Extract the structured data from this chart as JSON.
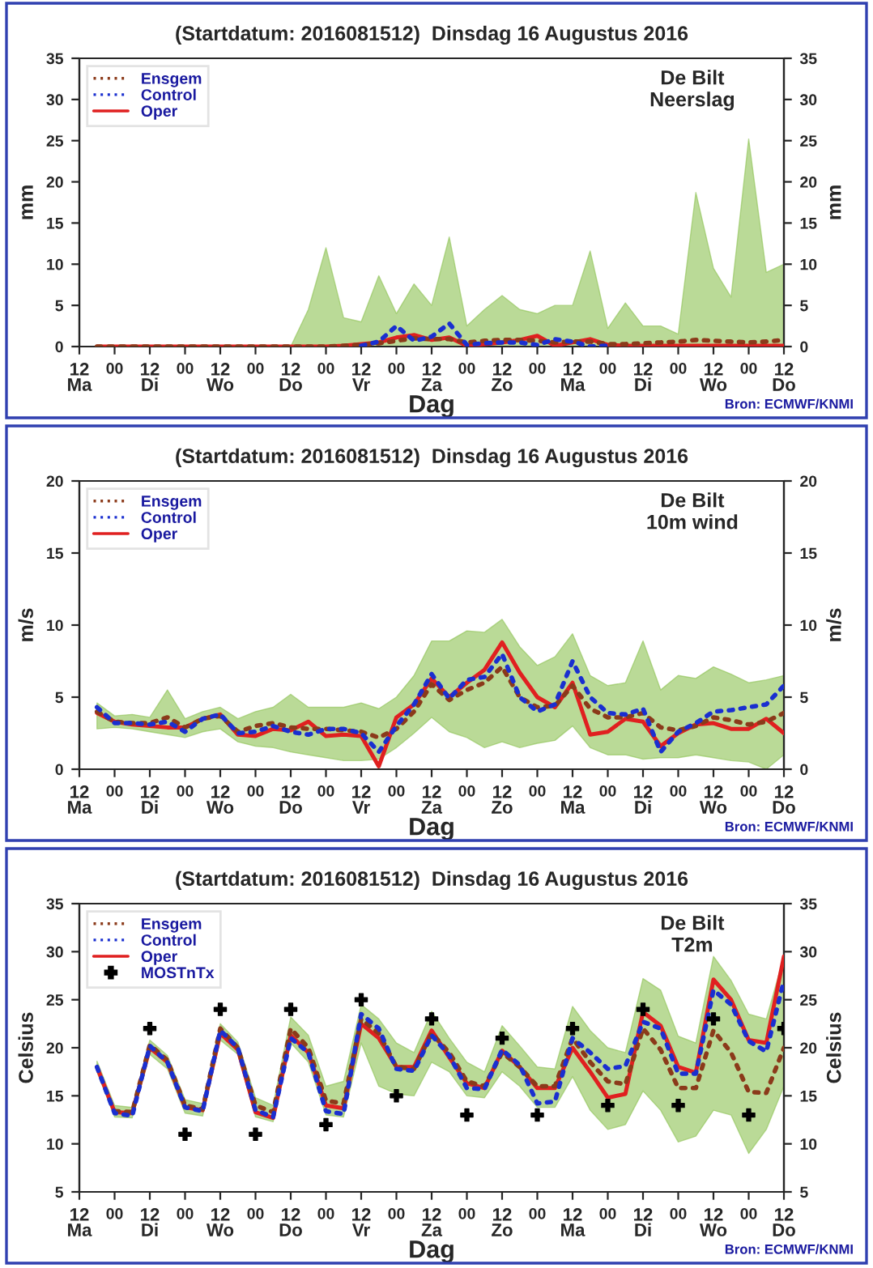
{
  "chart_data": [
    {
      "type": "line",
      "title": "(Startdatum: 2016081512)  Dinsdag 16 Augustus 2016",
      "xlabel": "Dag",
      "ylabel": "mm",
      "y2label": "mm",
      "annotations": [
        "De Bilt\nNeerslag",
        "Bron: ECMWF/KNMI"
      ],
      "x": [
        "2016-08-15T18:00",
        "2016-08-16T00:00",
        "2016-08-16T06:00",
        "2016-08-16T12:00",
        "2016-08-16T18:00",
        "2016-08-17T00:00",
        "2016-08-17T06:00",
        "2016-08-17T12:00",
        "2016-08-17T18:00",
        "2016-08-18T00:00",
        "2016-08-18T06:00",
        "2016-08-18T12:00",
        "2016-08-18T18:00",
        "2016-08-19T00:00",
        "2016-08-19T06:00",
        "2016-08-19T12:00",
        "2016-08-19T18:00",
        "2016-08-20T00:00",
        "2016-08-20T06:00",
        "2016-08-20T12:00",
        "2016-08-20T18:00",
        "2016-08-21T00:00",
        "2016-08-21T06:00",
        "2016-08-21T12:00",
        "2016-08-21T18:00",
        "2016-08-22T00:00",
        "2016-08-22T06:00",
        "2016-08-22T12:00",
        "2016-08-22T18:00",
        "2016-08-23T00:00",
        "2016-08-23T06:00",
        "2016-08-23T12:00",
        "2016-08-23T18:00",
        "2016-08-24T00:00",
        "2016-08-24T06:00",
        "2016-08-24T12:00",
        "2016-08-24T18:00",
        "2016-08-25T00:00",
        "2016-08-25T06:00",
        "2016-08-25T12:00"
      ],
      "series": [
        {
          "name": "Ensgem",
          "color": "#8b3a1a",
          "line_style": "dashed",
          "values": [
            0,
            0,
            0,
            0,
            0,
            0,
            0,
            0,
            0,
            0,
            0,
            0,
            0,
            0,
            0.1,
            0.2,
            0.4,
            0.7,
            1.0,
            0.9,
            0.9,
            0.5,
            0.7,
            0.8,
            0.8,
            0.7,
            0.5,
            0.6,
            0.6,
            0.3,
            0.3,
            0.4,
            0.5,
            0.6,
            0.8,
            0.7,
            0.6,
            0.5,
            0.6,
            0.8
          ],
          "lower": [
            0,
            0,
            0,
            0,
            0,
            0,
            0,
            0,
            0,
            0,
            0,
            0,
            0,
            0,
            0,
            0,
            0,
            0,
            0,
            0,
            0,
            0,
            0,
            0,
            0,
            0,
            0,
            0,
            0,
            0,
            0,
            0,
            0,
            0,
            0,
            0,
            0,
            0,
            0,
            0
          ],
          "upper": [
            0,
            0,
            0,
            0,
            0,
            0,
            0,
            0,
            0,
            0,
            0,
            0,
            4.5,
            12,
            3.5,
            3,
            8.6,
            4,
            7.6,
            5,
            13.3,
            2.5,
            4.5,
            6.2,
            4.5,
            4,
            5,
            5,
            11.6,
            2.2,
            5.3,
            2.5,
            2.5,
            1.5,
            18.7,
            9.5,
            6,
            25.2,
            9,
            10
          ]
        },
        {
          "name": "Control",
          "color": "#1a2fd0",
          "line_style": "dashed",
          "values": [
            null,
            null,
            null,
            null,
            null,
            null,
            null,
            null,
            null,
            null,
            null,
            null,
            null,
            null,
            null,
            0.1,
            0.6,
            2.5,
            0.7,
            1.2,
            2.8,
            0.2,
            0.4,
            0.5,
            0.5,
            0.2,
            0.9,
            0.6,
            0,
            0.1,
            null,
            null,
            null,
            null,
            null,
            null,
            null,
            null,
            null,
            null
          ]
        },
        {
          "name": "Oper",
          "color": "#e02020",
          "line_style": "solid",
          "values": [
            0,
            0,
            0,
            0,
            0,
            0,
            0,
            0,
            0,
            0,
            0,
            0,
            0,
            0,
            0.1,
            0.3,
            0.5,
            1.1,
            1.4,
            0.8,
            1.1,
            0.1,
            0.3,
            0.5,
            0.8,
            1.3,
            0.1,
            0.5,
            0.9,
            0.2,
            0.1,
            0.1,
            0.1,
            0.1,
            0.1,
            0.1,
            0.1,
            0.1,
            0.1,
            0.1
          ]
        }
      ],
      "xlim": [
        "2016-08-15T12:00",
        "2016-08-25T12:00"
      ],
      "ylim": [
        0,
        35
      ],
      "yticks": [
        0,
        5,
        10,
        15,
        20,
        25,
        30,
        35
      ],
      "y2lim": [
        0,
        35
      ],
      "y2ticks": [
        0,
        5,
        10,
        15,
        20,
        25,
        30,
        35
      ],
      "xticks": [
        {
          "value": "2016-08-15T12:00",
          "label": "12\nMa"
        },
        {
          "value": "2016-08-16T00:00",
          "label": "00"
        },
        {
          "value": "2016-08-16T12:00",
          "label": "12\nDi"
        },
        {
          "value": "2016-08-17T00:00",
          "label": "00"
        },
        {
          "value": "2016-08-17T12:00",
          "label": "12\nWo"
        },
        {
          "value": "2016-08-18T00:00",
          "label": "00"
        },
        {
          "value": "2016-08-18T12:00",
          "label": "12\nDo"
        },
        {
          "value": "2016-08-19T00:00",
          "label": "00"
        },
        {
          "value": "2016-08-19T12:00",
          "label": "12\nVr"
        },
        {
          "value": "2016-08-20T00:00",
          "label": "00"
        },
        {
          "value": "2016-08-20T12:00",
          "label": "12\nZa"
        },
        {
          "value": "2016-08-21T00:00",
          "label": "00"
        },
        {
          "value": "2016-08-21T12:00",
          "label": "12\nZo"
        },
        {
          "value": "2016-08-22T00:00",
          "label": "00"
        },
        {
          "value": "2016-08-22T12:00",
          "label": "12\nMa"
        },
        {
          "value": "2016-08-23T00:00",
          "label": "00"
        },
        {
          "value": "2016-08-23T12:00",
          "label": "12\nDi"
        },
        {
          "value": "2016-08-24T00:00",
          "label": "00"
        },
        {
          "value": "2016-08-24T12:00",
          "label": "12\nWo"
        },
        {
          "value": "2016-08-25T00:00",
          "label": "00"
        },
        {
          "value": "2016-08-25T12:00",
          "label": "12\nDo"
        }
      ],
      "legend": "top left",
      "grid": false
    },
    {
      "type": "line",
      "title": "(Startdatum: 2016081512)  Dinsdag 16 Augustus 2016",
      "xlabel": "Dag",
      "ylabel": "m/s",
      "y2label": "m/s",
      "annotations": [
        "De Bilt\n10m wind",
        "Bron: ECMWF/KNMI"
      ],
      "x": [
        "2016-08-15T18:00",
        "2016-08-16T00:00",
        "2016-08-16T06:00",
        "2016-08-16T12:00",
        "2016-08-16T18:00",
        "2016-08-17T00:00",
        "2016-08-17T06:00",
        "2016-08-17T12:00",
        "2016-08-17T18:00",
        "2016-08-18T00:00",
        "2016-08-18T06:00",
        "2016-08-18T12:00",
        "2016-08-18T18:00",
        "2016-08-19T00:00",
        "2016-08-19T06:00",
        "2016-08-19T12:00",
        "2016-08-19T18:00",
        "2016-08-20T00:00",
        "2016-08-20T06:00",
        "2016-08-20T12:00",
        "2016-08-20T18:00",
        "2016-08-21T00:00",
        "2016-08-21T06:00",
        "2016-08-21T12:00",
        "2016-08-21T18:00",
        "2016-08-22T00:00",
        "2016-08-22T06:00",
        "2016-08-22T12:00",
        "2016-08-22T18:00",
        "2016-08-23T00:00",
        "2016-08-23T06:00",
        "2016-08-23T12:00",
        "2016-08-23T18:00",
        "2016-08-24T00:00",
        "2016-08-24T06:00",
        "2016-08-24T12:00",
        "2016-08-24T18:00",
        "2016-08-25T00:00",
        "2016-08-25T06:00",
        "2016-08-25T12:00"
      ],
      "series": [
        {
          "name": "Ensgem",
          "color": "#8b3a1a",
          "line_style": "dashed",
          "values": [
            4.0,
            3.3,
            3.2,
            3.2,
            3.6,
            2.9,
            3.5,
            3.7,
            2.6,
            3.0,
            3.2,
            2.9,
            2.8,
            2.8,
            2.7,
            2.6,
            2.2,
            2.8,
            4.0,
            5.9,
            4.8,
            5.5,
            6.0,
            7.1,
            5.0,
            4.3,
            4.4,
            5.8,
            4.2,
            3.6,
            3.6,
            3.9,
            2.9,
            2.7,
            3.0,
            3.6,
            3.4,
            3.1,
            3.3,
            3.9
          ],
          "lower": [
            2.8,
            2.9,
            2.8,
            2.6,
            2.4,
            2.2,
            2.6,
            2.8,
            1.9,
            1.6,
            1.5,
            1.2,
            1.0,
            0.8,
            0.6,
            0.6,
            0.7,
            1.5,
            2.5,
            3.6,
            2.6,
            2.2,
            1.5,
            1.9,
            1.5,
            1.8,
            2.0,
            3.0,
            1.5,
            1.0,
            1.0,
            0.7,
            0.8,
            0.8,
            1.0,
            0.8,
            0.6,
            0.5,
            0,
            1.0
          ],
          "upper": [
            4.6,
            3.7,
            3.8,
            3.6,
            5.5,
            3.5,
            4.0,
            4.3,
            3.5,
            4.0,
            4.3,
            5.2,
            4.3,
            4.3,
            4.3,
            4.6,
            4.2,
            5.0,
            6.5,
            8.9,
            8.9,
            9.6,
            9.5,
            10.4,
            8.5,
            7.2,
            7.8,
            9.4,
            6.5,
            5.8,
            6.0,
            8.9,
            5.5,
            6.5,
            6.3,
            7.1,
            6.6,
            6.0,
            6.2,
            6.5
          ]
        },
        {
          "name": "Control",
          "color": "#1a2fd0",
          "line_style": "dashed",
          "values": [
            4.3,
            3.2,
            3.2,
            3.1,
            3.3,
            2.6,
            3.5,
            3.8,
            2.5,
            2.6,
            3.0,
            2.6,
            2.4,
            2.8,
            2.8,
            2.5,
            1.2,
            3.0,
            4.5,
            6.6,
            4.9,
            6.2,
            6.4,
            8.0,
            5.0,
            4.0,
            4.5,
            7.5,
            5.0,
            3.9,
            3.8,
            4.2,
            1.2,
            2.6,
            3.2,
            4.0,
            4.1,
            4.3,
            4.5,
            5.8
          ]
        },
        {
          "name": "Oper",
          "color": "#e02020",
          "line_style": "solid",
          "values": [
            3.9,
            3.3,
            3.1,
            3.0,
            2.9,
            2.9,
            3.5,
            3.8,
            2.4,
            2.3,
            2.8,
            2.7,
            3.3,
            2.3,
            2.4,
            2.3,
            0.2,
            3.6,
            4.5,
            6.3,
            5.0,
            6.0,
            6.9,
            8.8,
            6.7,
            5.0,
            4.3,
            6.0,
            2.4,
            2.6,
            3.5,
            3.3,
            1.6,
            2.5,
            3.1,
            3.2,
            2.8,
            2.8,
            3.5,
            2.5
          ]
        }
      ],
      "xlim": [
        "2016-08-15T12:00",
        "2016-08-25T12:00"
      ],
      "ylim": [
        0,
        20
      ],
      "yticks": [
        0,
        5,
        10,
        15,
        20
      ],
      "y2lim": [
        0,
        20
      ],
      "y2ticks": [
        0,
        5,
        10,
        15,
        20
      ],
      "xticks": [
        {
          "value": "2016-08-15T12:00",
          "label": "12\nMa"
        },
        {
          "value": "2016-08-16T00:00",
          "label": "00"
        },
        {
          "value": "2016-08-16T12:00",
          "label": "12\nDi"
        },
        {
          "value": "2016-08-17T00:00",
          "label": "00"
        },
        {
          "value": "2016-08-17T12:00",
          "label": "12\nWo"
        },
        {
          "value": "2016-08-18T00:00",
          "label": "00"
        },
        {
          "value": "2016-08-18T12:00",
          "label": "12\nDo"
        },
        {
          "value": "2016-08-19T00:00",
          "label": "00"
        },
        {
          "value": "2016-08-19T12:00",
          "label": "12\nVr"
        },
        {
          "value": "2016-08-20T00:00",
          "label": "00"
        },
        {
          "value": "2016-08-20T12:00",
          "label": "12\nZa"
        },
        {
          "value": "2016-08-21T00:00",
          "label": "00"
        },
        {
          "value": "2016-08-21T12:00",
          "label": "12\nZo"
        },
        {
          "value": "2016-08-22T00:00",
          "label": "00"
        },
        {
          "value": "2016-08-22T12:00",
          "label": "12\nMa"
        },
        {
          "value": "2016-08-23T00:00",
          "label": "00"
        },
        {
          "value": "2016-08-23T12:00",
          "label": "12\nDi"
        },
        {
          "value": "2016-08-24T00:00",
          "label": "00"
        },
        {
          "value": "2016-08-24T12:00",
          "label": "12\nWo"
        },
        {
          "value": "2016-08-25T00:00",
          "label": "00"
        },
        {
          "value": "2016-08-25T12:00",
          "label": "12\nDo"
        }
      ],
      "legend": "top left",
      "grid": false
    },
    {
      "type": "line",
      "title": "(Startdatum: 2016081512)  Dinsdag 16 Augustus 2016",
      "xlabel": "Dag",
      "ylabel": "Celsius",
      "y2label": "Celsius",
      "annotations": [
        "De Bilt\nT2m",
        "Bron: ECMWF/KNMI"
      ],
      "x": [
        "2016-08-15T18:00",
        "2016-08-16T00:00",
        "2016-08-16T06:00",
        "2016-08-16T12:00",
        "2016-08-16T18:00",
        "2016-08-17T00:00",
        "2016-08-17T06:00",
        "2016-08-17T12:00",
        "2016-08-17T18:00",
        "2016-08-18T00:00",
        "2016-08-18T06:00",
        "2016-08-18T12:00",
        "2016-08-18T18:00",
        "2016-08-19T00:00",
        "2016-08-19T06:00",
        "2016-08-19T12:00",
        "2016-08-19T18:00",
        "2016-08-20T00:00",
        "2016-08-20T06:00",
        "2016-08-20T12:00",
        "2016-08-20T18:00",
        "2016-08-21T00:00",
        "2016-08-21T06:00",
        "2016-08-21T12:00",
        "2016-08-21T18:00",
        "2016-08-22T00:00",
        "2016-08-22T06:00",
        "2016-08-22T12:00",
        "2016-08-22T18:00",
        "2016-08-23T00:00",
        "2016-08-23T06:00",
        "2016-08-23T12:00",
        "2016-08-23T18:00",
        "2016-08-24T00:00",
        "2016-08-24T06:00",
        "2016-08-24T12:00",
        "2016-08-24T18:00",
        "2016-08-25T00:00",
        "2016-08-25T06:00",
        "2016-08-25T12:00"
      ],
      "series": [
        {
          "name": "Ensgem",
          "color": "#8b3a1a",
          "line_style": "dashed",
          "values": [
            null,
            13.4,
            13.3,
            20.3,
            18.7,
            14,
            13.6,
            22,
            20,
            14,
            13.3,
            22,
            20,
            14.5,
            14.2,
            23,
            21.5,
            18,
            17.8,
            21.5,
            19.5,
            16.5,
            16,
            19.5,
            18,
            16,
            16,
            21,
            18.5,
            16.5,
            16.2,
            22,
            19.8,
            15.8,
            15.8,
            21.8,
            19.5,
            15.4,
            15.3,
            20
          ],
          "lower": [
            17.5,
            12.8,
            12.7,
            19.3,
            17.8,
            13.2,
            12.9,
            20.8,
            19.3,
            12.8,
            12.3,
            20.5,
            18.5,
            13,
            12.8,
            20.5,
            16,
            15.2,
            15,
            18.5,
            17.5,
            15,
            14.8,
            17.5,
            16,
            13.8,
            13.8,
            17,
            13.5,
            11.5,
            12,
            15.5,
            13.5,
            10.2,
            10.8,
            13.5,
            13,
            9,
            11.5,
            16
          ],
          "upper": [
            18.6,
            14,
            13.8,
            20.8,
            19.2,
            14.6,
            14.2,
            22.5,
            20.6,
            14.8,
            14,
            23.2,
            21.3,
            16,
            16.5,
            24.5,
            23,
            20.5,
            19.5,
            23.8,
            21,
            18.5,
            17.5,
            22.3,
            20.2,
            18,
            17.8,
            24.3,
            21.8,
            20,
            19.5,
            27.2,
            26,
            21.2,
            20.5,
            29.5,
            27,
            23.5,
            23,
            29.5
          ]
        },
        {
          "name": "Control",
          "color": "#1a2fd0",
          "line_style": "dashed",
          "values": [
            18,
            13.2,
            12.9,
            20.2,
            18.5,
            13.8,
            13.4,
            21.8,
            20,
            13.5,
            12.8,
            21,
            19.5,
            13.4,
            13.1,
            23.5,
            22,
            17.8,
            17.6,
            21.3,
            19.2,
            15.8,
            15.7,
            19.8,
            18.2,
            14.2,
            14.4,
            21,
            19.5,
            17.8,
            18.1,
            22.7,
            22,
            17.3,
            17.3,
            26,
            24.5,
            20.7,
            19.6,
            27
          ]
        },
        {
          "name": "Oper",
          "color": "#e02020",
          "line_style": "solid",
          "values": [
            18,
            13.3,
            13.2,
            20,
            18.5,
            13.8,
            13.5,
            21.5,
            19.8,
            13.3,
            12.7,
            21.3,
            19.5,
            14,
            13.7,
            22.5,
            21,
            18,
            18,
            21.8,
            19,
            16.3,
            15.8,
            19.7,
            18,
            15.8,
            15.8,
            20,
            17.5,
            14.8,
            15.2,
            23.7,
            22.3,
            18,
            17.4,
            27.1,
            25,
            20.8,
            20.5,
            29.5
          ]
        },
        {
          "name": "MOSTnTx",
          "type": "scatter",
          "color": "#000000",
          "marker": "cross",
          "x": [
            "2016-08-16T12:00",
            "2016-08-17T00:00",
            "2016-08-17T12:00",
            "2016-08-18T00:00",
            "2016-08-18T12:00",
            "2016-08-19T00:00",
            "2016-08-19T12:00",
            "2016-08-20T00:00",
            "2016-08-20T12:00",
            "2016-08-21T00:00",
            "2016-08-21T12:00",
            "2016-08-22T00:00",
            "2016-08-22T12:00",
            "2016-08-23T00:00",
            "2016-08-23T12:00",
            "2016-08-24T00:00",
            "2016-08-24T12:00",
            "2016-08-25T00:00",
            "2016-08-25T12:00"
          ],
          "values": [
            22,
            11,
            24,
            11,
            24,
            12,
            25,
            15,
            23,
            13,
            21,
            13,
            22,
            14,
            24,
            14,
            23,
            13,
            22
          ]
        }
      ],
      "xlim": [
        "2016-08-15T12:00",
        "2016-08-25T12:00"
      ],
      "ylim": [
        5,
        35
      ],
      "yticks": [
        5,
        10,
        15,
        20,
        25,
        30,
        35
      ],
      "y2lim": [
        5,
        35
      ],
      "y2ticks": [
        5,
        10,
        15,
        20,
        25,
        30,
        35
      ],
      "xticks": [
        {
          "value": "2016-08-15T12:00",
          "label": "12\nMa"
        },
        {
          "value": "2016-08-16T00:00",
          "label": "00"
        },
        {
          "value": "2016-08-16T12:00",
          "label": "12\nDi"
        },
        {
          "value": "2016-08-17T00:00",
          "label": "00"
        },
        {
          "value": "2016-08-17T12:00",
          "label": "12\nWo"
        },
        {
          "value": "2016-08-18T00:00",
          "label": "00"
        },
        {
          "value": "2016-08-18T12:00",
          "label": "12\nDo"
        },
        {
          "value": "2016-08-19T00:00",
          "label": "00"
        },
        {
          "value": "2016-08-19T12:00",
          "label": "12\nVr"
        },
        {
          "value": "2016-08-20T00:00",
          "label": "00"
        },
        {
          "value": "2016-08-20T12:00",
          "label": "12\nZa"
        },
        {
          "value": "2016-08-21T00:00",
          "label": "00"
        },
        {
          "value": "2016-08-21T12:00",
          "label": "12\nZo"
        },
        {
          "value": "2016-08-22T00:00",
          "label": "00"
        },
        {
          "value": "2016-08-22T12:00",
          "label": "12\nMa"
        },
        {
          "value": "2016-08-23T00:00",
          "label": "00"
        },
        {
          "value": "2016-08-23T12:00",
          "label": "12\nDi"
        },
        {
          "value": "2016-08-24T00:00",
          "label": "00"
        },
        {
          "value": "2016-08-24T12:00",
          "label": "12\nWo"
        },
        {
          "value": "2016-08-25T00:00",
          "label": "00"
        },
        {
          "value": "2016-08-25T12:00",
          "label": "12\nDo"
        }
      ],
      "legend": "top left",
      "grid": false
    }
  ]
}
